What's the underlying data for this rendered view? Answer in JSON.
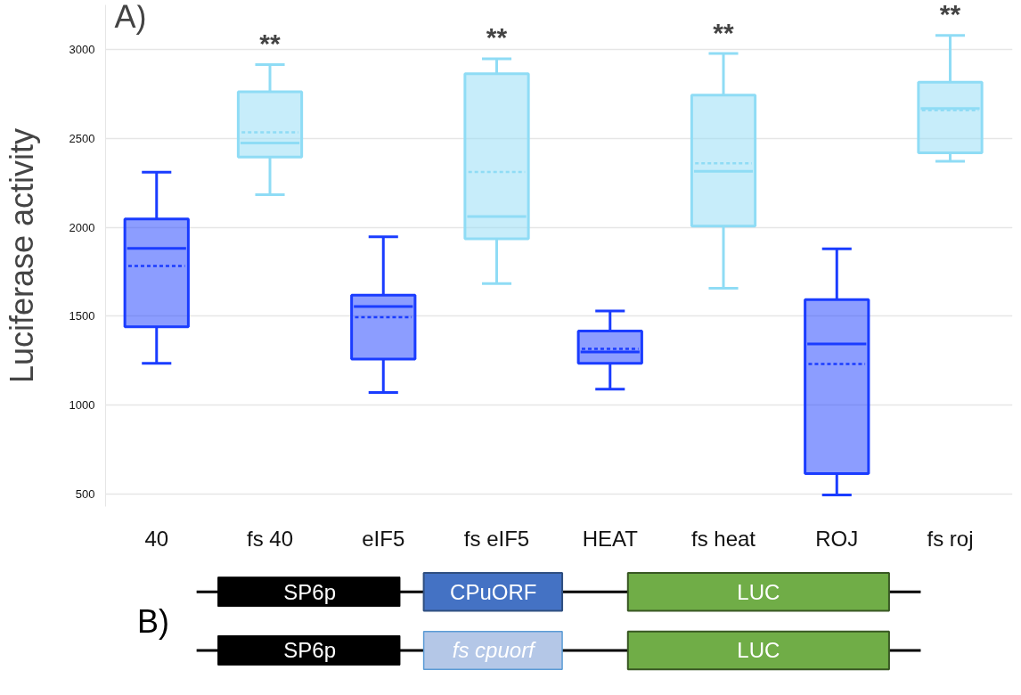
{
  "chart_data": [
    {
      "type": "box",
      "ylabel": "Luciferase activity",
      "categories": [
        "40",
        "fs 40",
        "eIF5",
        "fs eIF5",
        "HEAT",
        "fs heat",
        "ROJ",
        "fs roj"
      ],
      "ylim": [
        430,
        3250
      ],
      "yticks": [
        500,
        1000,
        1500,
        2000,
        2500,
        3000
      ],
      "grid": "y",
      "series": [
        {
          "color": "#1a3cff",
          "boxes": [
            {
              "low": 1235,
              "q1": 1441,
              "median": 1881,
              "q3": 2046,
              "high": 2309,
              "mean": 1783
            },
            null,
            {
              "low": 1071,
              "q1": 1259,
              "median": 1554,
              "q3": 1618,
              "high": 1946,
              "mean": 1494
            },
            null,
            {
              "low": 1090,
              "q1": 1235,
              "median": 1299,
              "q3": 1417,
              "high": 1530,
              "mean": 1317
            },
            null,
            {
              "low": 495,
              "q1": 615,
              "median": 1344,
              "q3": 1593,
              "high": 1879,
              "mean": 1231
            },
            null
          ]
        },
        {
          "color": "#8fdcf5",
          "boxes": [
            null,
            {
              "low": 2183,
              "q1": 2395,
              "median": 2474,
              "q3": 2762,
              "high": 2914,
              "mean": 2534
            },
            null,
            {
              "low": 1684,
              "q1": 1935,
              "median": 2061,
              "q3": 2863,
              "high": 2947,
              "mean": 2311
            },
            null,
            {
              "low": 1657,
              "q1": 2007,
              "median": 2315,
              "q3": 2743,
              "high": 2977,
              "mean": 2360
            },
            null,
            {
              "low": 2371,
              "q1": 2418,
              "median": 2668,
              "q3": 2816,
              "high": 3079,
              "mean": 2658
            }
          ]
        }
      ],
      "annotations": [
        "A)",
        "**",
        "**",
        "**",
        "**"
      ]
    },
    {
      "type": "other",
      "annotations": [
        "B)",
        "SP6p",
        "CPuORF",
        "LUC",
        "SP6p",
        "fs cpuorf",
        "LUC"
      ]
    }
  ]
}
